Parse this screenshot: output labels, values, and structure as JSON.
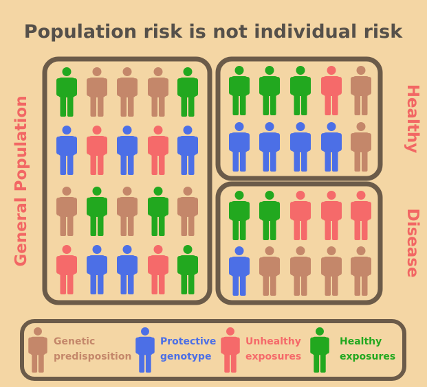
{
  "title": "Population risk is not individual risk",
  "labels": {
    "general": "General Population",
    "healthy": "Healthy",
    "disease": "Disease"
  },
  "colors": {
    "background": "#f4d6a4",
    "box_stroke": "#6b5b49",
    "genetic": "#c4876a",
    "protective": "#4c6fe6",
    "unhealthy": "#f56a6a",
    "healthy": "#22a81f",
    "side_label": "#f26764",
    "title": "#55504a"
  },
  "icon": "person-icon",
  "groups": {
    "general": {
      "rows": [
        [
          "healthy",
          "genetic",
          "genetic",
          "genetic",
          "healthy"
        ],
        [
          "protective",
          "unhealthy",
          "protective",
          "unhealthy",
          "protective"
        ],
        [
          "genetic",
          "healthy",
          "genetic",
          "healthy",
          "genetic"
        ],
        [
          "unhealthy",
          "protective",
          "protective",
          "unhealthy",
          "healthy"
        ]
      ]
    },
    "healthy": {
      "rows": [
        [
          "healthy",
          "healthy",
          "healthy",
          "unhealthy",
          "genetic"
        ],
        [
          "protective",
          "protective",
          "protective",
          "protective",
          "genetic"
        ]
      ]
    },
    "disease": {
      "rows": [
        [
          "healthy",
          "healthy",
          "unhealthy",
          "unhealthy",
          "unhealthy"
        ],
        [
          "protective",
          "genetic",
          "genetic",
          "genetic",
          "genetic"
        ]
      ]
    }
  },
  "legend": [
    {
      "key": "genetic",
      "lines": [
        "Genetic",
        "predisposition"
      ]
    },
    {
      "key": "protective",
      "lines": [
        "Protective",
        "genotype"
      ]
    },
    {
      "key": "unhealthy",
      "lines": [
        "Unhealthy",
        "exposures"
      ]
    },
    {
      "key": "healthy",
      "lines": [
        "Healthy",
        "exposures"
      ]
    }
  ]
}
